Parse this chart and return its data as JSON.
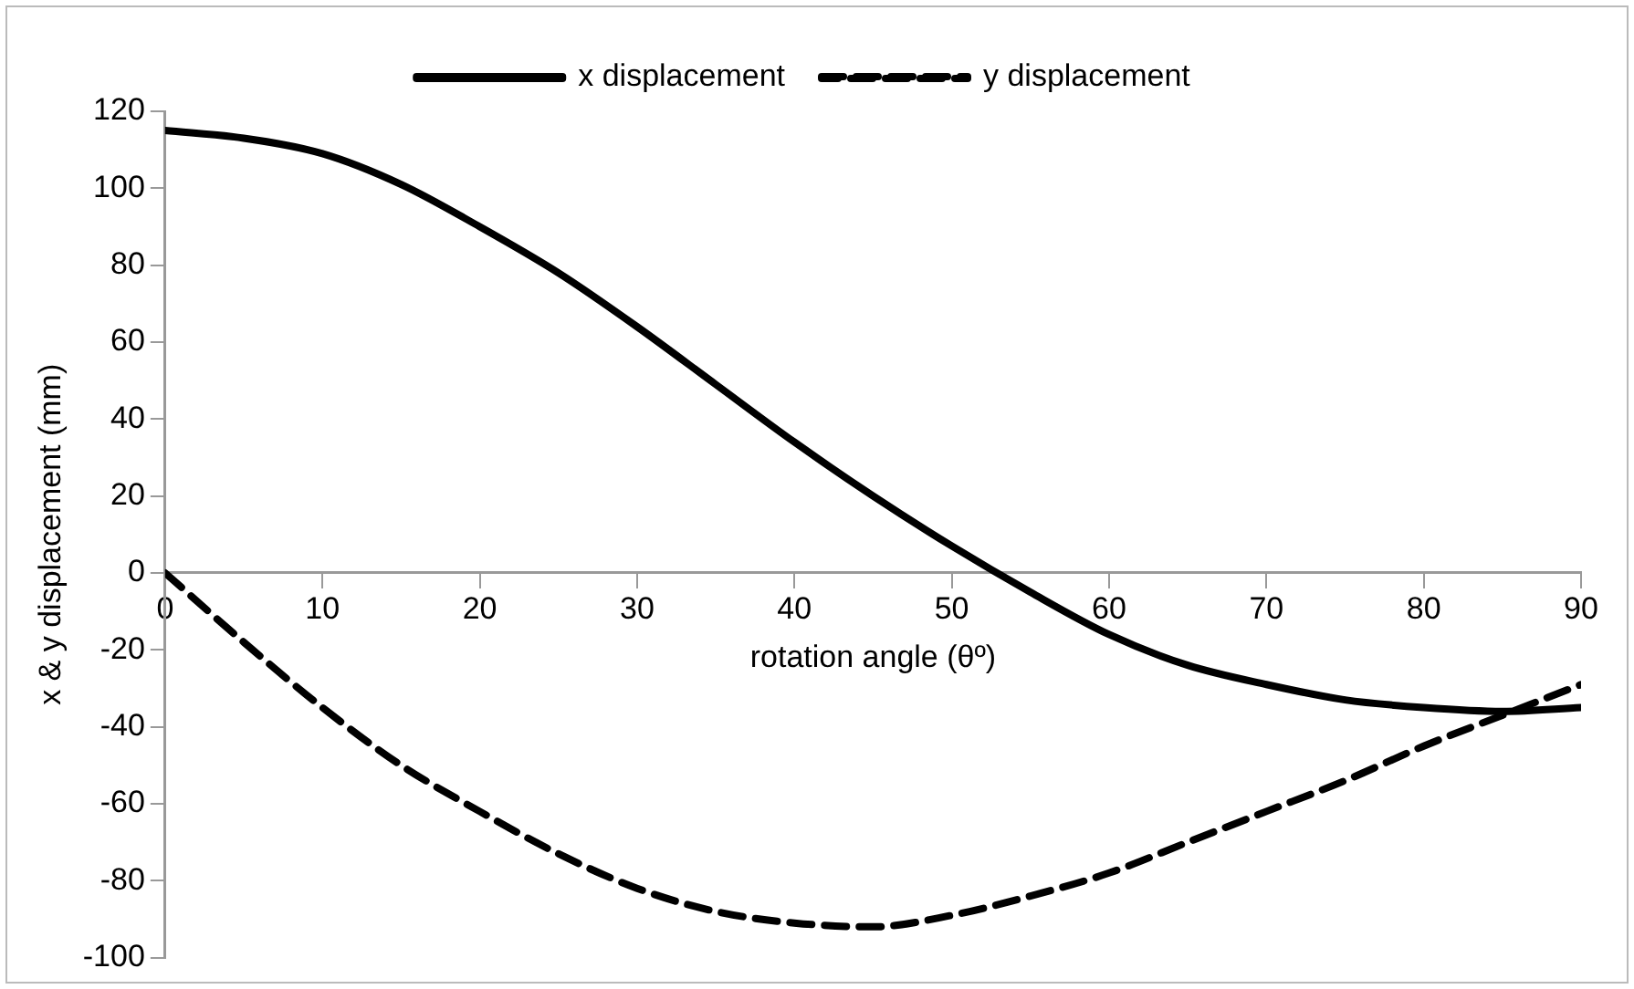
{
  "chart_data": {
    "type": "line",
    "xlabel": "rotation angle (θº)",
    "ylabel": "x & y displacement (mm)",
    "x": [
      0,
      5,
      10,
      15,
      20,
      25,
      30,
      35,
      40,
      45,
      50,
      55,
      60,
      65,
      70,
      75,
      80,
      85,
      90
    ],
    "series": [
      {
        "name": "x displacement",
        "color": "#000000",
        "line_style": "solid",
        "values": [
          115,
          113,
          109,
          101,
          90,
          78,
          64,
          49,
          34,
          20,
          7,
          -5,
          -16,
          -24,
          -29,
          -33,
          -35,
          -36,
          -35
        ]
      },
      {
        "name": "y displacement",
        "color": "#000000",
        "line_style": "dashed",
        "values": [
          0,
          -18,
          -35,
          -50,
          -62,
          -73,
          -82,
          -88,
          -91,
          -92,
          -89,
          -84,
          -78,
          -70,
          -62,
          -54,
          -45,
          -37,
          -29
        ]
      }
    ],
    "xlim": [
      0,
      90
    ],
    "xticks": [
      0,
      10,
      20,
      30,
      40,
      50,
      60,
      70,
      80,
      90
    ],
    "ylim": [
      -100,
      120
    ],
    "yticks": [
      -100,
      -80,
      -60,
      -40,
      -20,
      0,
      20,
      40,
      60,
      80,
      100,
      120
    ],
    "grid": false,
    "legend": "top",
    "marker": "none"
  }
}
